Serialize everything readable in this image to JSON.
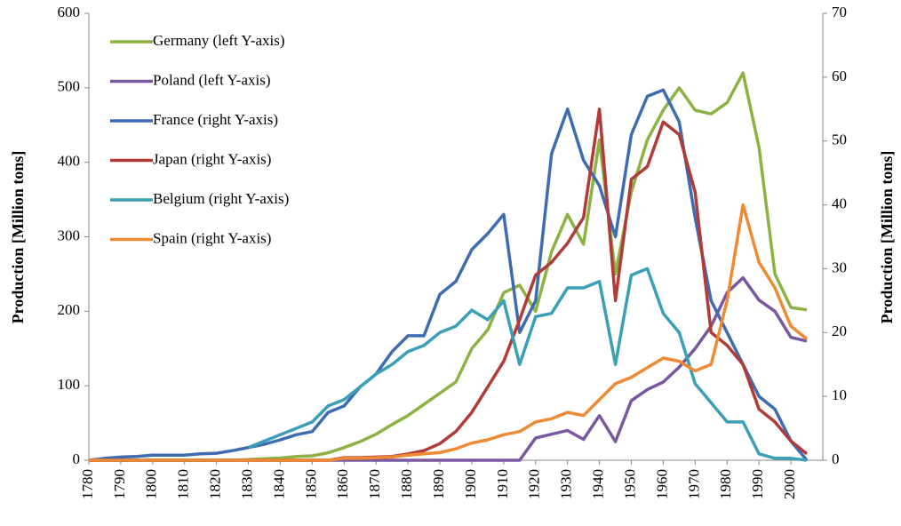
{
  "chart_data": {
    "type": "line",
    "y_label": "Production [Million tons]",
    "y2_label": "Production [Million tons]",
    "x": [
      1780,
      1785,
      1790,
      1795,
      1800,
      1805,
      1810,
      1815,
      1820,
      1825,
      1830,
      1835,
      1840,
      1845,
      1850,
      1855,
      1860,
      1865,
      1870,
      1875,
      1880,
      1885,
      1890,
      1895,
      1900,
      1905,
      1910,
      1915,
      1920,
      1925,
      1930,
      1935,
      1940,
      1945,
      1950,
      1955,
      1960,
      1965,
      1970,
      1975,
      1980,
      1985,
      1990,
      1995,
      2000,
      2005
    ],
    "xlim": [
      1780,
      2010
    ],
    "xticks": [
      1780,
      1790,
      1800,
      1810,
      1820,
      1830,
      1840,
      1850,
      1860,
      1870,
      1880,
      1890,
      1900,
      1910,
      1920,
      1930,
      1940,
      1950,
      1960,
      1970,
      1980,
      1990,
      2000
    ],
    "ylim": [
      0,
      600
    ],
    "yticks": [
      0,
      100,
      200,
      300,
      400,
      500,
      600
    ],
    "y2lim": [
      0,
      70
    ],
    "y2ticks": [
      0,
      10,
      20,
      30,
      40,
      50,
      60,
      70
    ],
    "legend": "upper left",
    "series": [
      {
        "name": "Germany (left Y-axis)",
        "color": "#8db244",
        "axis": "y",
        "values": [
          0,
          0,
          0,
          0,
          0,
          0,
          0,
          0,
          0,
          0,
          1,
          2,
          3,
          5,
          6,
          10,
          17,
          25,
          35,
          48,
          60,
          75,
          90,
          105,
          150,
          175,
          225,
          235,
          200,
          280,
          330,
          290,
          430,
          250,
          360,
          430,
          470,
          500,
          470,
          465,
          480,
          520,
          420,
          250,
          205,
          202
        ]
      },
      {
        "name": "Poland (left Y-axis)",
        "color": "#7a58a0",
        "axis": "y",
        "values": [
          0,
          0,
          0,
          0,
          0,
          0,
          0,
          0,
          0,
          0,
          0,
          0,
          0,
          0,
          0,
          0,
          0,
          0,
          0,
          0,
          0,
          0,
          0,
          0,
          0,
          0,
          0,
          0,
          30,
          35,
          40,
          28,
          60,
          25,
          80,
          95,
          105,
          125,
          150,
          180,
          225,
          245,
          215,
          200,
          165,
          160
        ]
      },
      {
        "name": "France (right Y-axis)",
        "color": "#3f6cb0",
        "axis": "y2",
        "values": [
          0,
          0.3,
          0.5,
          0.6,
          0.8,
          0.8,
          0.8,
          1,
          1.1,
          1.5,
          2,
          2.5,
          3.2,
          4,
          4.5,
          7.5,
          8.5,
          11.5,
          13.5,
          17,
          19.5,
          19.5,
          26,
          28,
          33,
          35.5,
          38.5,
          20,
          25,
          48,
          55,
          47,
          43,
          35,
          51,
          57,
          58,
          53,
          38,
          25,
          20,
          15,
          10,
          8,
          3,
          0
        ]
      },
      {
        "name": "Japan (right Y-axis)",
        "color": "#b03b38",
        "axis": "y2",
        "values": [
          0,
          0,
          0,
          0,
          0,
          0,
          0,
          0,
          0,
          0,
          0,
          0,
          0,
          0,
          0,
          0,
          0.4,
          0.4,
          0.5,
          0.6,
          1,
          1.5,
          2.6,
          4.5,
          7.5,
          11.5,
          15.5,
          22,
          29,
          31,
          34,
          38,
          55,
          25,
          44,
          46,
          53,
          51,
          42,
          20,
          18,
          15,
          8,
          6,
          3,
          1
        ]
      },
      {
        "name": "Belgium (right Y-axis)",
        "color": "#3b9fb6",
        "axis": "y2",
        "values": [
          null,
          null,
          null,
          null,
          null,
          null,
          null,
          null,
          null,
          null,
          2,
          3,
          4,
          5,
          6,
          8.5,
          9.5,
          11.5,
          13.5,
          15,
          17,
          18,
          20,
          21,
          23.5,
          22,
          25,
          15,
          22.5,
          23,
          27,
          27,
          28,
          15,
          29,
          30,
          23,
          20,
          12,
          9,
          6,
          6,
          1,
          0.3,
          0.3,
          0
        ]
      },
      {
        "name": "Spain (right Y-axis)",
        "color": "#ee8a34",
        "axis": "y2",
        "values": [
          0,
          0,
          0,
          0,
          0,
          0,
          0,
          0,
          0,
          0,
          0,
          0,
          0,
          0,
          0,
          0,
          0.3,
          0.3,
          0.4,
          0.5,
          0.8,
          1,
          1.2,
          1.8,
          2.7,
          3.2,
          4,
          4.5,
          6,
          6.5,
          7.5,
          7,
          9.5,
          12,
          13,
          14.5,
          16,
          15.5,
          14,
          15,
          25,
          40,
          31,
          27,
          21,
          19
        ]
      }
    ]
  }
}
